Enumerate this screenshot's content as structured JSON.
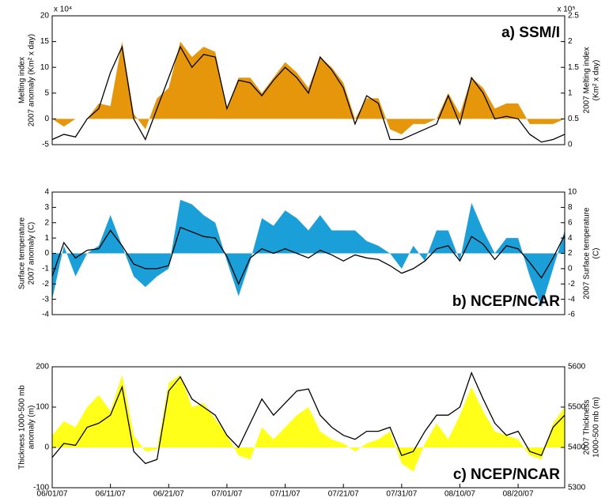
{
  "chart_data": [
    {
      "type": "area",
      "title": "a) SSM/I",
      "y_multiplier": "x 10⁴",
      "y2_multiplier": "x 10⁵",
      "ylabel": [
        "Melting index",
        "2007 anomaly (Km² x day)"
      ],
      "y2label": [
        "2007 Melting index",
        "(Km² x day)"
      ],
      "x": [
        "06/01/07",
        "06/03/07",
        "06/05/07",
        "06/07/07",
        "06/09/07",
        "06/11/07",
        "06/13/07",
        "06/15/07",
        "06/17/07",
        "06/19/07",
        "06/21/07",
        "06/23/07",
        "06/25/07",
        "06/27/07",
        "06/29/07",
        "07/01/07",
        "07/03/07",
        "07/05/07",
        "07/07/07",
        "07/09/07",
        "07/11/07",
        "07/13/07",
        "07/15/07",
        "07/17/07",
        "07/19/07",
        "07/21/07",
        "07/23/07",
        "07/25/07",
        "07/27/07",
        "07/29/07",
        "07/31/07",
        "08/02/07",
        "08/04/07",
        "08/06/07",
        "08/08/07",
        "08/10/07",
        "08/12/07",
        "08/14/07",
        "08/16/07",
        "08/18/07",
        "08/20/07",
        "08/22/07",
        "08/24/07",
        "08/26/07",
        "08/28/07"
      ],
      "xlim": [
        "06/01/07",
        "08/28/07"
      ],
      "ylim": [
        -5,
        20
      ],
      "yticks": [
        -5,
        0,
        5,
        10,
        15,
        20
      ],
      "y2lim": [
        0,
        2.5
      ],
      "y2ticks": [
        0,
        0.5,
        1,
        1.5,
        2,
        2.5
      ],
      "series": [
        {
          "type": "area",
          "color": "#e6960a",
          "values": [
            0,
            -1.5,
            0,
            0,
            3,
            2.5,
            15,
            1,
            -2,
            4,
            6,
            15,
            12,
            14,
            13,
            2,
            8,
            8,
            5,
            8,
            11,
            9,
            6,
            12,
            10,
            7,
            0,
            4,
            4,
            -2,
            -3,
            -1,
            -1,
            0,
            5,
            1,
            8,
            6,
            2,
            3,
            3,
            -1,
            -1,
            -1,
            0
          ]
        },
        {
          "type": "line",
          "color": "#000000",
          "axis": "y2",
          "values": [
            0.1,
            0.2,
            0.15,
            0.5,
            0.7,
            1.4,
            1.9,
            0.5,
            0.1,
            0.7,
            1.3,
            1.9,
            1.5,
            1.75,
            1.7,
            0.7,
            1.25,
            1.2,
            0.95,
            1.25,
            1.5,
            1.3,
            1.0,
            1.7,
            1.45,
            1.1,
            0.4,
            0.95,
            0.8,
            0.1,
            0.1,
            0.2,
            0.3,
            0.4,
            0.95,
            0.4,
            1.3,
            1.0,
            0.5,
            0.55,
            0.5,
            0.2,
            0.05,
            0.1,
            0.2
          ]
        }
      ]
    },
    {
      "type": "area",
      "title": "b) NCEP/NCAR",
      "ylabel": [
        "Surface temperature",
        "2007 anomaly (C)"
      ],
      "y2label": [
        "2007 Surface temperature",
        "(C)"
      ],
      "x": [
        "06/01/07",
        "06/03/07",
        "06/05/07",
        "06/07/07",
        "06/09/07",
        "06/11/07",
        "06/13/07",
        "06/15/07",
        "06/17/07",
        "06/19/07",
        "06/21/07",
        "06/23/07",
        "06/25/07",
        "06/27/07",
        "06/29/07",
        "07/01/07",
        "07/03/07",
        "07/05/07",
        "07/07/07",
        "07/09/07",
        "07/11/07",
        "07/13/07",
        "07/15/07",
        "07/17/07",
        "07/19/07",
        "07/21/07",
        "07/23/07",
        "07/25/07",
        "07/27/07",
        "07/29/07",
        "07/31/07",
        "08/02/07",
        "08/04/07",
        "08/06/07",
        "08/08/07",
        "08/10/07",
        "08/12/07",
        "08/14/07",
        "08/16/07",
        "08/18/07",
        "08/20/07",
        "08/22/07",
        "08/24/07",
        "08/26/07",
        "08/28/07"
      ],
      "xlim": [
        "06/01/07",
        "08/28/07"
      ],
      "ylim": [
        -4,
        4
      ],
      "yticks": [
        -4,
        -3,
        -2,
        -1,
        0,
        1,
        2,
        3,
        4
      ],
      "y2lim": [
        -6,
        10
      ],
      "y2ticks": [
        -6,
        -4,
        -2,
        0,
        2,
        4,
        6,
        8,
        10
      ],
      "series": [
        {
          "type": "area",
          "color": "#1b9fd8",
          "values": [
            -3,
            0.5,
            -1.5,
            0,
            0.5,
            2.5,
            0.5,
            -1.5,
            -2.2,
            -1.5,
            -1,
            3.5,
            3.2,
            2.5,
            2,
            -0.5,
            -2.8,
            -0.5,
            2.3,
            1.8,
            2.8,
            2.3,
            1.5,
            2.5,
            1.5,
            1.5,
            1.5,
            0.8,
            0.5,
            0,
            -1,
            0.5,
            -0.5,
            1.5,
            1.5,
            -0.5,
            3.3,
            1.5,
            0,
            1,
            1,
            -1.5,
            -3.5,
            -1,
            1.5
          ]
        },
        {
          "type": "line",
          "color": "#000000",
          "axis": "y2",
          "values": [
            -1,
            3.4,
            1.4,
            2.4,
            2.6,
            5,
            3,
            0.6,
            0,
            0,
            0.4,
            5.4,
            4.8,
            4.2,
            4,
            1.6,
            -2,
            1.4,
            2.6,
            2,
            2.6,
            2,
            1.4,
            2.4,
            1.8,
            1,
            1.8,
            1.4,
            1.2,
            0.4,
            -0.6,
            0,
            1,
            2.6,
            3,
            1,
            4.2,
            3.2,
            1.2,
            3,
            2.6,
            0.8,
            -1.2,
            1.4,
            4.4
          ]
        }
      ]
    },
    {
      "type": "area",
      "title": "c) NCEP/NCAR",
      "ylabel": [
        "Thickness 1000-500 mb",
        "anomaly (m)"
      ],
      "y2label": [
        "2007 Thickness",
        "1000-500 mb (m)"
      ],
      "x": [
        "06/01/07",
        "06/03/07",
        "06/05/07",
        "06/07/07",
        "06/09/07",
        "06/11/07",
        "06/13/07",
        "06/15/07",
        "06/17/07",
        "06/19/07",
        "06/21/07",
        "06/23/07",
        "06/25/07",
        "06/27/07",
        "06/29/07",
        "07/01/07",
        "07/03/07",
        "07/05/07",
        "07/07/07",
        "07/09/07",
        "07/11/07",
        "07/13/07",
        "07/15/07",
        "07/17/07",
        "07/19/07",
        "07/21/07",
        "07/23/07",
        "07/25/07",
        "07/27/07",
        "07/29/07",
        "07/31/07",
        "08/02/07",
        "08/04/07",
        "08/06/07",
        "08/08/07",
        "08/10/07",
        "08/12/07",
        "08/14/07",
        "08/16/07",
        "08/18/07",
        "08/20/07",
        "08/22/07",
        "08/24/07",
        "08/26/07",
        "08/28/07"
      ],
      "xlim": [
        "06/01/07",
        "08/28/07"
      ],
      "xticks": [
        "06/01/07",
        "06/11/07",
        "06/21/07",
        "07/01/07",
        "07/11/07",
        "07/21/07",
        "07/31/07",
        "08/10/07",
        "08/20/07"
      ],
      "ylim": [
        -100,
        200
      ],
      "yticks": [
        -100,
        0,
        100,
        200
      ],
      "y2lim": [
        5300,
        5600
      ],
      "y2ticks": [
        5300,
        5400,
        5500,
        5600
      ],
      "series": [
        {
          "type": "area",
          "color": "#ffff1a",
          "values": [
            30,
            65,
            50,
            100,
            130,
            90,
            180,
            30,
            -10,
            -5,
            160,
            180,
            100,
            110,
            70,
            30,
            -20,
            -30,
            50,
            20,
            50,
            80,
            100,
            40,
            20,
            10,
            -10,
            10,
            20,
            40,
            -40,
            -60,
            10,
            60,
            20,
            80,
            150,
            90,
            40,
            30,
            20,
            -20,
            -30,
            60,
            100
          ]
        },
        {
          "type": "line",
          "color": "#000000",
          "axis": "y2",
          "values": [
            5375,
            5410,
            5405,
            5450,
            5460,
            5480,
            5550,
            5390,
            5360,
            5370,
            5540,
            5575,
            5520,
            5500,
            5480,
            5430,
            5400,
            5460,
            5520,
            5480,
            5510,
            5540,
            5545,
            5480,
            5450,
            5430,
            5420,
            5440,
            5440,
            5450,
            5380,
            5390,
            5440,
            5480,
            5480,
            5500,
            5585,
            5520,
            5460,
            5430,
            5440,
            5390,
            5380,
            5450,
            5480
          ]
        }
      ]
    }
  ]
}
